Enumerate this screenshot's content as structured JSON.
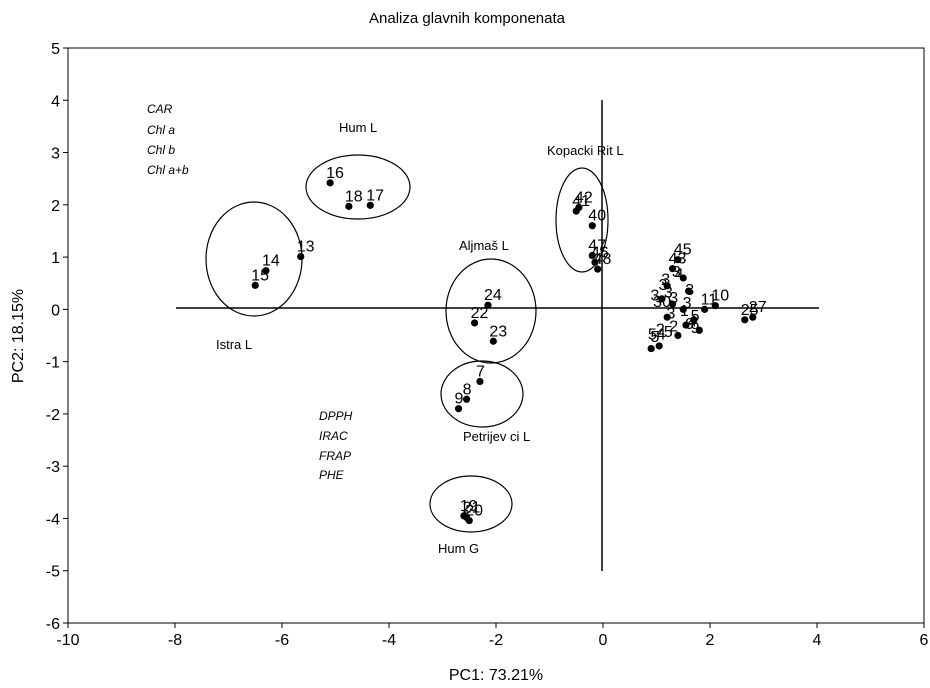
{
  "chart_data": {
    "type": "scatter",
    "title": "Analiza glavnih komponenata",
    "xlabel": "PC1: 73.21%",
    "ylabel": "PC2: 18.15%",
    "xlim": [
      -10,
      6
    ],
    "ylim": [
      -6,
      5
    ],
    "xticks": [
      "-10",
      "-8",
      "-6",
      "-4",
      "-2",
      "0",
      "2",
      "4",
      "6"
    ],
    "yticks": [
      "5",
      "4",
      "3",
      "2",
      "1",
      "0",
      "-1",
      "-2",
      "-3",
      "-4",
      "-5",
      "-6"
    ],
    "grid": false,
    "points": [
      {
        "label": "16",
        "x": -5.1,
        "y": 2.42
      },
      {
        "label": "18",
        "x": -4.75,
        "y": 1.97
      },
      {
        "label": "17",
        "x": -4.35,
        "y": 1.99
      },
      {
        "label": "13",
        "x": -5.65,
        "y": 1.01
      },
      {
        "label": "14",
        "x": -6.3,
        "y": 0.74
      },
      {
        "label": "15",
        "x": -6.5,
        "y": 0.46
      },
      {
        "label": "24",
        "x": -2.15,
        "y": 0.08
      },
      {
        "label": "22",
        "x": -2.4,
        "y": -0.26
      },
      {
        "label": "23",
        "x": -2.05,
        "y": -0.61
      },
      {
        "label": "7",
        "x": -2.3,
        "y": -1.38
      },
      {
        "label": "8",
        "x": -2.55,
        "y": -1.72
      },
      {
        "label": "9",
        "x": -2.7,
        "y": -1.9
      },
      {
        "label": "21",
        "x": -2.55,
        "y": -3.98
      },
      {
        "label": "19",
        "x": -2.6,
        "y": -3.95
      },
      {
        "label": "20",
        "x": -2.5,
        "y": -4.04
      },
      {
        "label": "42",
        "x": -0.45,
        "y": 1.95
      },
      {
        "label": "41",
        "x": -0.5,
        "y": 1.88
      },
      {
        "label": "40",
        "x": -0.2,
        "y": 1.6
      },
      {
        "label": "47",
        "x": -0.2,
        "y": 1.03
      },
      {
        "label": "46",
        "x": -0.15,
        "y": 0.9
      },
      {
        "label": "48",
        "x": -0.1,
        "y": 0.77
      },
      {
        "label": "45",
        "x": 1.4,
        "y": 0.95
      },
      {
        "label": "43",
        "x": 1.3,
        "y": 0.78
      },
      {
        "label": "",
        "x": 1.5,
        "y": 0.6
      },
      {
        "label": "",
        "x": 1.2,
        "y": 0.45
      },
      {
        "label": "",
        "x": 1.6,
        "y": 0.35
      },
      {
        "label": "",
        "x": 1.1,
        "y": 0.2
      },
      {
        "label": "",
        "x": 1.3,
        "y": 0.1
      },
      {
        "label": "",
        "x": 1.5,
        "y": 0.0
      },
      {
        "label": "11",
        "x": 1.9,
        "y": 0.0
      },
      {
        "label": "10",
        "x": 2.1,
        "y": 0.07
      },
      {
        "label": "",
        "x": 1.2,
        "y": -0.15
      },
      {
        "label": "",
        "x": 1.55,
        "y": -0.3
      },
      {
        "label": "",
        "x": 1.7,
        "y": -0.2
      },
      {
        "label": "",
        "x": 1.8,
        "y": -0.4
      },
      {
        "label": "",
        "x": 1.4,
        "y": -0.5
      },
      {
        "label": "",
        "x": 1.05,
        "y": -0.7
      },
      {
        "label": "",
        "x": 0.9,
        "y": -0.75
      },
      {
        "label": "25",
        "x": 2.65,
        "y": -0.2
      },
      {
        "label": "27",
        "x": 2.8,
        "y": -0.15
      }
    ],
    "overlapping_labels": [
      "5",
      "54",
      "5",
      "2",
      "2",
      "3",
      "30",
      "3",
      "3",
      "3",
      "4",
      "3",
      "1",
      "3",
      "3",
      "4",
      "5",
      "9",
      "3",
      "9",
      "3"
    ],
    "group_labels": [
      "Hum L",
      "Istra L",
      "Aljmaš L",
      "Petrijev ci L",
      "Hum G",
      "Kopacki Rit L"
    ],
    "variables_upper_left": [
      "CAR",
      "Chl a",
      "Chl b",
      "Chl a+b"
    ],
    "variables_lower_left": [
      "DPPH",
      "IRAC",
      "FRAP",
      "PHE"
    ]
  }
}
